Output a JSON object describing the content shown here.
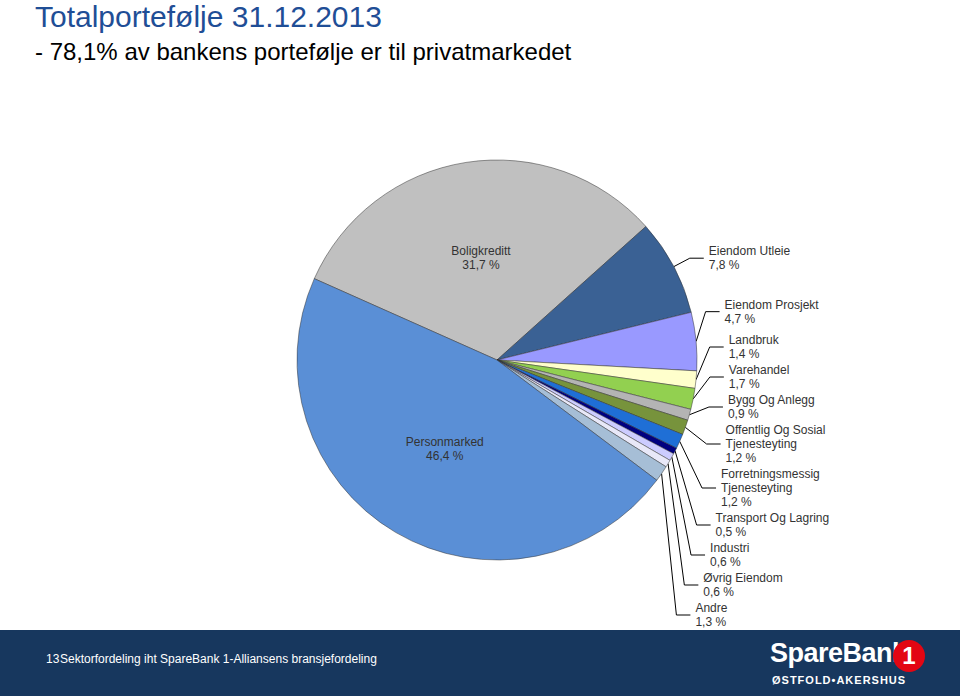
{
  "chart_data": {
    "type": "pie",
    "title": "Totalportefølje 31.12.2013",
    "subtitle": "- 78,1% av bankens portefølje er til privatmarkedet",
    "categories": [
      "Boligkreditt",
      "Eiendom Utleie",
      "Eiendom Prosjekt",
      "Landbruk",
      "Varehandel",
      "Bygg Og Anlegg",
      "Offentlig Og Sosial Tjenesteyting",
      "Forretningsmessig Tjenesteyting",
      "Transport Og Lagring",
      "Industri",
      "Øvrig Eiendom",
      "Andre",
      "Personmarked"
    ],
    "values": [
      31.7,
      7.8,
      4.7,
      1.4,
      1.7,
      0.9,
      1.2,
      1.2,
      0.5,
      0.6,
      0.6,
      1.3,
      46.4
    ],
    "value_labels": [
      "31,7 %",
      "7,8 %",
      "4,7 %",
      "1,4 %",
      "1,7 %",
      "0,9 %",
      "1,2 %",
      "1,2 %",
      "0,5 %",
      "0,6 %",
      "0,6 %",
      "1,3 %",
      "46,4 %"
    ],
    "colors": [
      "#c0c0c0",
      "#3a6194",
      "#9999ff",
      "#ffffcc",
      "#92d050",
      "#b4b4b4",
      "#77933c",
      "#1f6fd6",
      "#000080",
      "#ccccff",
      "#e8e8f8",
      "#a6bed6",
      "#5a8fd6"
    ],
    "data_labels": true,
    "footnote": "Sektorfordeling iht SpareBank 1-Alliansens bransjefordeling",
    "page_number": "13",
    "logo": {
      "name": "SpareBank",
      "number": "1",
      "region": "ØSTFOLD•AKERSHUS"
    }
  }
}
